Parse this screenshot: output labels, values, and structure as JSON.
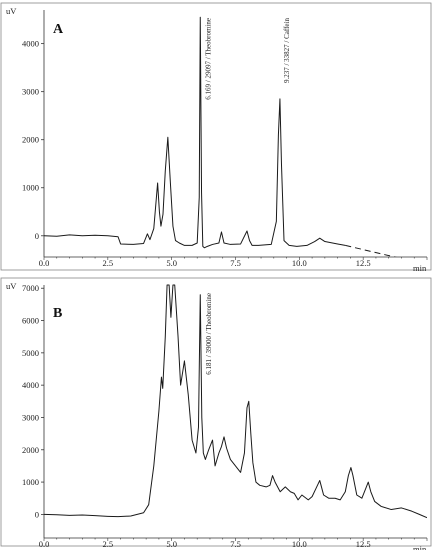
{
  "chart_data": [
    {
      "type": "line",
      "panel_label": "A",
      "ylabel": "uV",
      "xlabel": "min",
      "xlim": [
        0,
        15
      ],
      "ylim": [
        -400,
        4700
      ],
      "x_ticks": [
        0.0,
        2.5,
        5.0,
        7.5,
        10.0,
        12.5
      ],
      "x_tick_labels": [
        "0.0",
        "2.5",
        "5.0",
        "7.5",
        "10.0",
        "12.5"
      ],
      "y_ticks": [
        0,
        1000,
        2000,
        3000,
        4000
      ],
      "y_tick_labels": [
        "0",
        "1000",
        "2000",
        "3000",
        "4000"
      ],
      "series": [
        {
          "x": [
            0.0,
            0.5,
            1.0,
            1.5,
            2.0,
            2.5,
            2.9,
            3.0,
            3.5,
            3.9,
            4.05,
            4.15,
            4.3,
            4.45,
            4.52,
            4.58,
            4.66,
            4.75,
            4.85,
            4.95,
            5.05,
            5.15,
            5.3,
            5.5,
            5.8,
            6.0,
            6.08,
            6.12,
            6.17,
            6.22,
            6.28,
            6.4,
            6.6,
            6.85,
            6.95,
            7.05,
            7.3,
            7.7,
            7.95,
            8.05,
            8.15,
            8.4,
            8.9,
            9.1,
            9.18,
            9.24,
            9.3,
            9.4,
            9.6,
            9.9,
            10.3,
            10.6,
            10.8,
            11.0,
            11.5,
            11.8
          ],
          "y": [
            0,
            -10,
            20,
            0,
            10,
            0,
            -20,
            -170,
            -180,
            -160,
            40,
            -80,
            150,
            1100,
            500,
            200,
            450,
            1350,
            2050,
            1100,
            200,
            -100,
            -150,
            -200,
            -200,
            -150,
            800,
            4550,
            900,
            -220,
            -250,
            -220,
            -180,
            -150,
            80,
            -150,
            -180,
            -170,
            100,
            -100,
            -200,
            -200,
            -180,
            300,
            2100,
            2850,
            1500,
            -100,
            -200,
            -220,
            -200,
            -120,
            -50,
            -120,
            -170,
            -200
          ],
          "dashed_continuation": {
            "x": [
              11.8,
              15.0
            ],
            "y": [
              -200,
              -600
            ]
          }
        }
      ],
      "annotations": [
        {
          "x": 6.169,
          "text": "6.169 / 29097 / Theobromine"
        },
        {
          "x": 9.237,
          "text": "9.237 / 33827 / Caffein"
        }
      ]
    },
    {
      "type": "line",
      "panel_label": "B",
      "ylabel": "uV",
      "xlabel": "min",
      "xlim": [
        0,
        15
      ],
      "ylim": [
        -700,
        7100
      ],
      "x_ticks": [
        0.0,
        2.5,
        5.0,
        7.5,
        10.0,
        12.5
      ],
      "x_tick_labels": [
        "0.0",
        "2.5",
        "5.0",
        "7.5",
        "10.0",
        "12.5"
      ],
      "y_ticks": [
        0,
        1000,
        2000,
        3000,
        4000,
        5000,
        6000,
        7000
      ],
      "y_tick_labels": [
        "0",
        "1000",
        "2000",
        "3000",
        "4000",
        "5000",
        "6000",
        "7000"
      ],
      "series": [
        {
          "x": [
            0.0,
            0.5,
            1.0,
            1.5,
            2.0,
            2.5,
            2.9,
            3.4,
            3.9,
            4.1,
            4.3,
            4.5,
            4.6,
            4.65,
            4.75,
            4.82,
            4.9,
            4.97,
            5.05,
            5.12,
            5.25,
            5.35,
            5.5,
            5.65,
            5.8,
            5.95,
            6.05,
            6.12,
            6.18,
            6.24,
            6.32,
            6.45,
            6.6,
            6.7,
            6.85,
            6.95,
            7.05,
            7.15,
            7.3,
            7.45,
            7.6,
            7.7,
            7.85,
            7.95,
            8.02,
            8.1,
            8.18,
            8.3,
            8.45,
            8.7,
            8.85,
            8.95,
            9.05,
            9.25,
            9.45,
            9.65,
            9.8,
            9.95,
            10.1,
            10.35,
            10.5,
            10.65,
            10.8,
            10.85,
            10.95,
            11.15,
            11.4,
            11.6,
            11.8,
            11.92,
            12.02,
            12.1,
            12.25,
            12.45,
            12.6,
            12.7,
            12.8,
            12.95,
            13.2,
            13.6,
            14.0,
            14.4,
            14.7,
            15.0
          ],
          "y": [
            0,
            -10,
            -30,
            -20,
            -40,
            -60,
            -70,
            -50,
            50,
            300,
            1500,
            3200,
            4250,
            3900,
            5500,
            7100,
            7100,
            6100,
            7100,
            7100,
            5500,
            4000,
            4750,
            3700,
            2300,
            1900,
            2700,
            6800,
            3000,
            1900,
            1700,
            2000,
            2300,
            1500,
            1900,
            2100,
            2400,
            2050,
            1700,
            1550,
            1400,
            1300,
            1900,
            3300,
            3500,
            2500,
            1600,
            1000,
            900,
            850,
            900,
            1200,
            1000,
            700,
            850,
            700,
            650,
            450,
            600,
            450,
            550,
            800,
            1050,
            900,
            600,
            500,
            500,
            450,
            700,
            1200,
            1450,
            1200,
            600,
            500,
            800,
            1000,
            700,
            400,
            250,
            150,
            200,
            100,
            0,
            -100
          ]
        }
      ],
      "annotations": [
        {
          "x": 6.181,
          "text": "6.181 / 39000 / Theobromine"
        }
      ]
    }
  ],
  "colors": {
    "line": "#1a1a1a",
    "axis": "#333333",
    "frame": "#888888"
  }
}
